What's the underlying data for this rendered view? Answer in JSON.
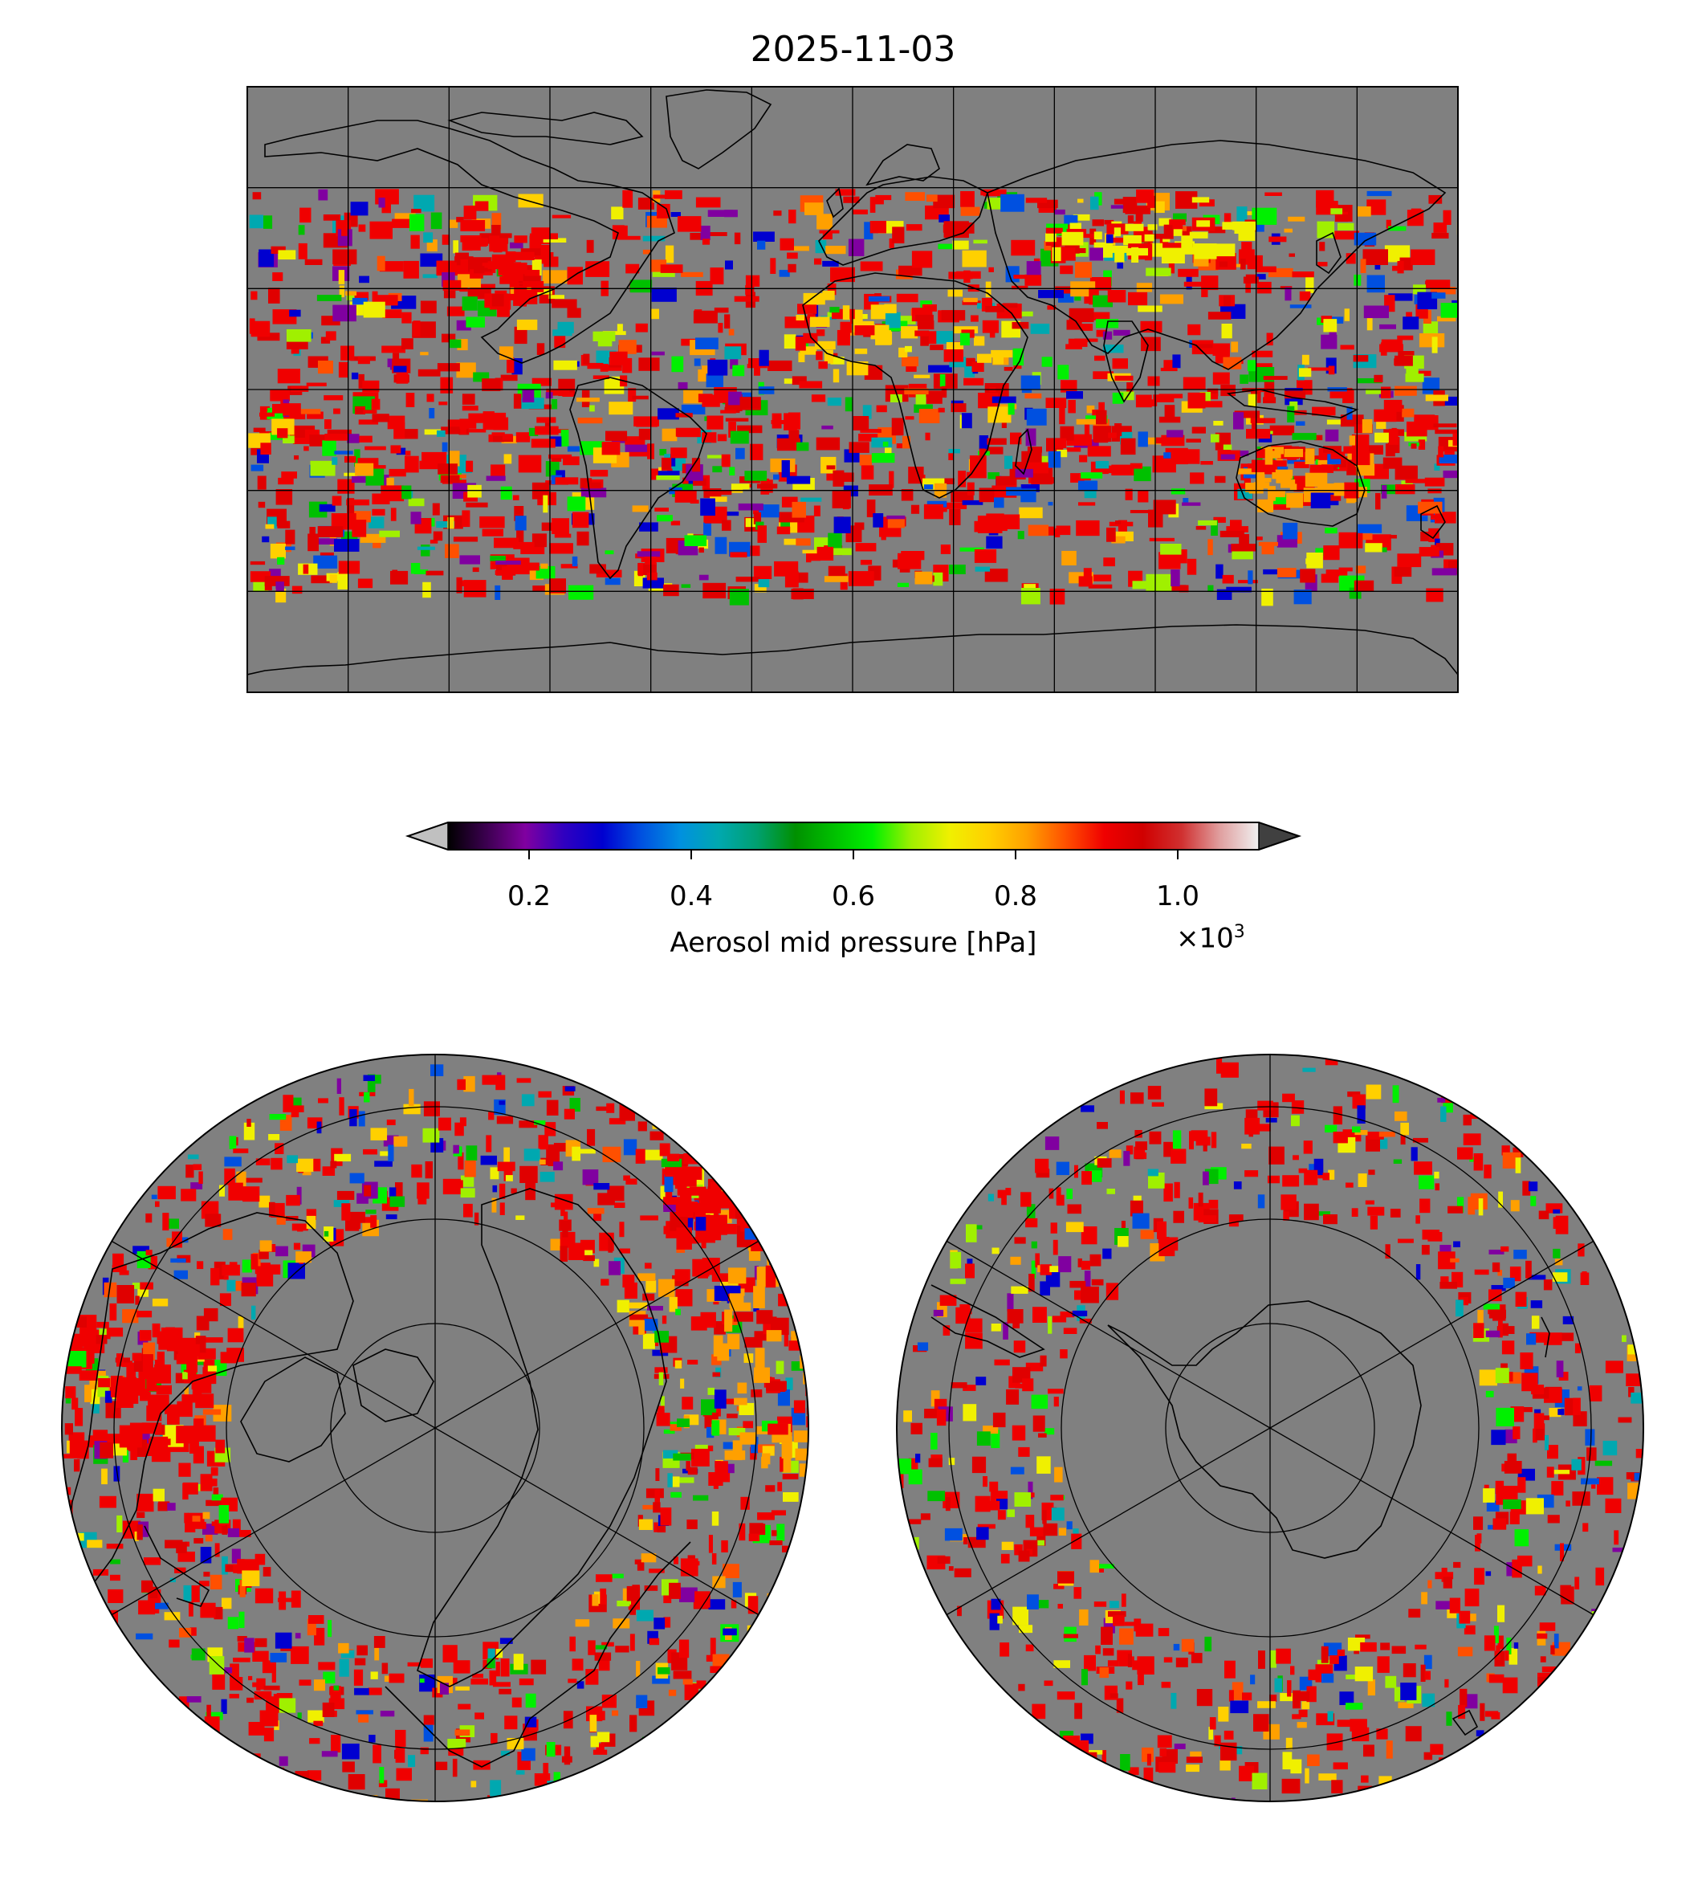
{
  "title": "2025-11-03",
  "colorbar": {
    "label": "Aerosol mid pressure [hPa]",
    "multiplier_base": "×10",
    "multiplier_exp": "3",
    "ticks": [
      "0.2",
      "0.4",
      "0.6",
      "0.8",
      "1.0"
    ],
    "tick_values": [
      0.2,
      0.4,
      0.6,
      0.8,
      1.0
    ],
    "range": [
      0.1,
      1.1
    ],
    "extend": "both",
    "under_color": "#c0c0c0",
    "over_color": "#404040",
    "colormap": [
      "#000000",
      "#3c0050",
      "#8000a0",
      "#3000c0",
      "#0000d0",
      "#0050e0",
      "#0090e0",
      "#00a8b0",
      "#00a070",
      "#009000",
      "#00c000",
      "#00f000",
      "#a0f000",
      "#f0f000",
      "#ffd000",
      "#ffa000",
      "#ff5000",
      "#f00000",
      "#d00000",
      "#d03030",
      "#e0a0a0",
      "#f0f0f0"
    ]
  },
  "maps": {
    "background": "#808080",
    "global": {
      "projection": "plate-carree",
      "gridlines": true
    },
    "north_polar": {
      "projection": "north-polar-stereographic",
      "gridlines": true
    },
    "south_polar": {
      "projection": "south-polar-stereographic",
      "gridlines": true
    }
  }
}
